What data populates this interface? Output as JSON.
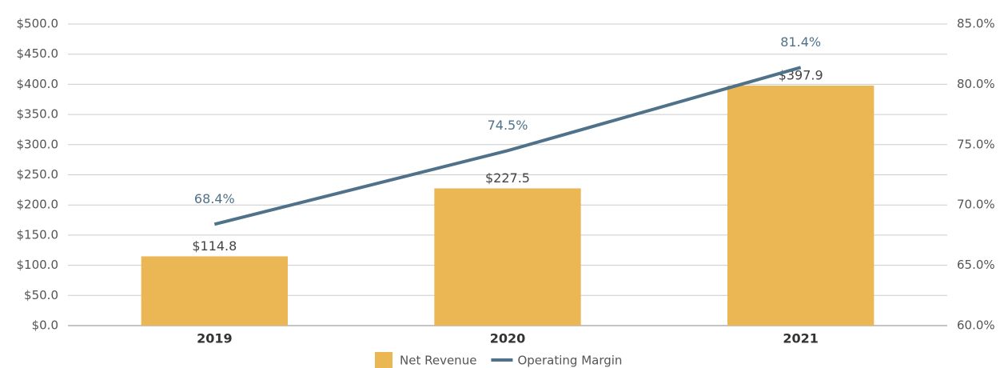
{
  "chart_data": {
    "type": "combo",
    "categories": [
      "2019",
      "2020",
      "2021"
    ],
    "series": [
      {
        "name": "Net Revenue",
        "type": "bar",
        "color": "#ebb654",
        "values": [
          114.8,
          227.5,
          397.9
        ],
        "value_labels": [
          "$114.8",
          "$227.5",
          "$397.9"
        ]
      },
      {
        "name": "Operating Margin",
        "type": "line",
        "axis": "y2",
        "color": "#4f7189",
        "values": [
          68.4,
          74.5,
          81.4
        ],
        "value_labels": [
          "68.4%",
          "74.5%",
          "81.4%"
        ]
      }
    ],
    "ylim": [
      0,
      500
    ],
    "yticks": [
      {
        "value": 0,
        "label": "$0.0"
      },
      {
        "value": 50,
        "label": "$50.0"
      },
      {
        "value": 100,
        "label": "$100.0"
      },
      {
        "value": 150,
        "label": "$150.0"
      },
      {
        "value": 200,
        "label": "$200.0"
      },
      {
        "value": 250,
        "label": "$250.0"
      },
      {
        "value": 300,
        "label": "$300.0"
      },
      {
        "value": 350,
        "label": "$350.0"
      },
      {
        "value": 400,
        "label": "$400.0"
      },
      {
        "value": 450,
        "label": "$450.0"
      },
      {
        "value": 500,
        "label": "$500.0"
      }
    ],
    "y2lim": [
      60,
      85
    ],
    "y2ticks": [
      {
        "value": 60,
        "label": "60.0%"
      },
      {
        "value": 65,
        "label": "65.0%"
      },
      {
        "value": 70,
        "label": "70.0%"
      },
      {
        "value": 75,
        "label": "75.0%"
      },
      {
        "value": 80,
        "label": "80.0%"
      },
      {
        "value": 85,
        "label": "85.0%"
      }
    ],
    "grid": true,
    "legend": "bottom"
  }
}
